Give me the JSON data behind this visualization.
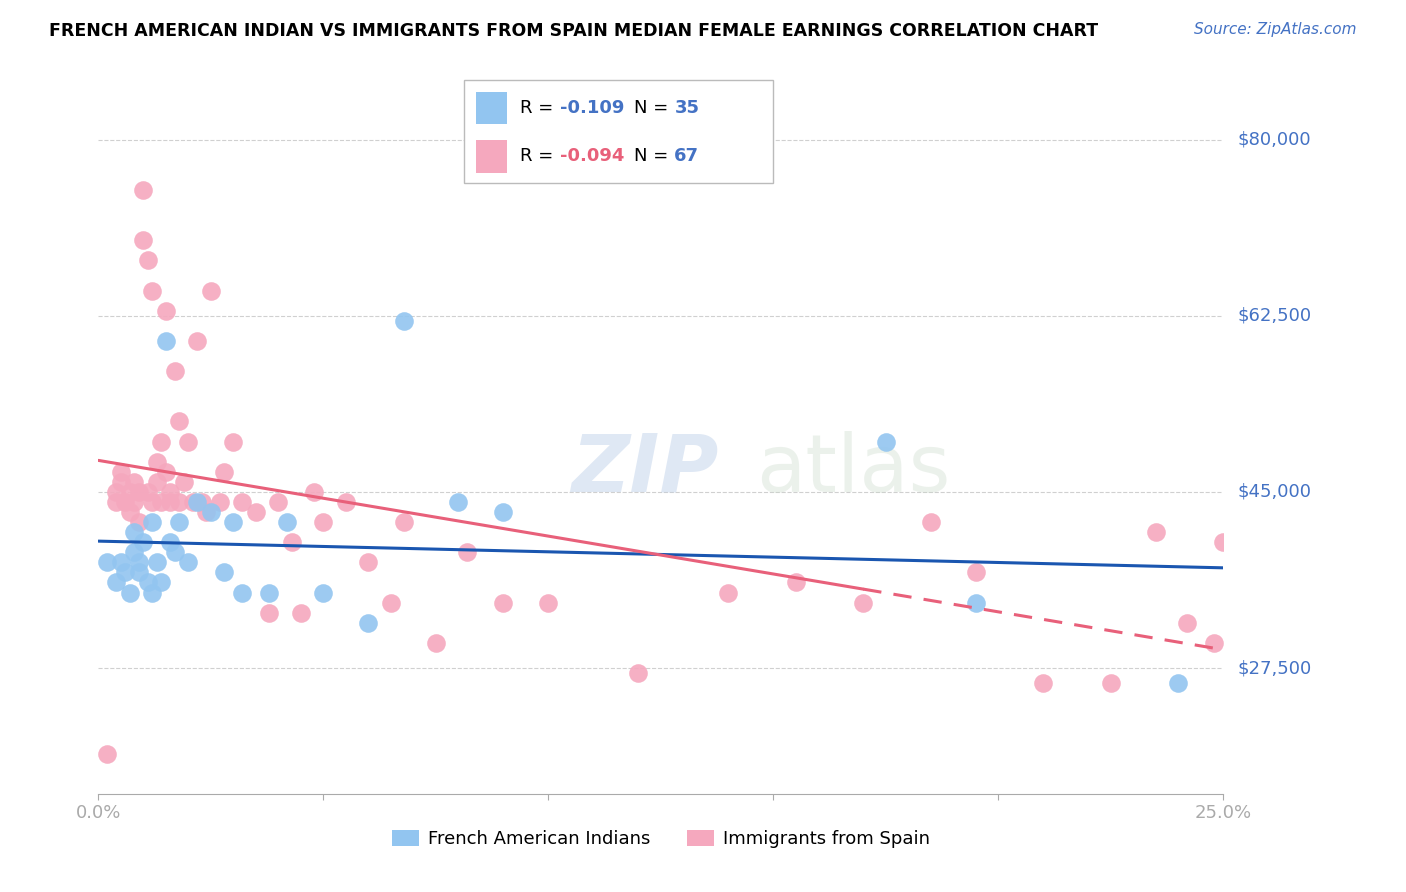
{
  "title": "FRENCH AMERICAN INDIAN VS IMMIGRANTS FROM SPAIN MEDIAN FEMALE EARNINGS CORRELATION CHART",
  "source": "Source: ZipAtlas.com",
  "ylabel": "Median Female Earnings",
  "xmin": 0.0,
  "xmax": 0.25,
  "ymin": 15000,
  "ymax": 85000,
  "blue_R": "-0.109",
  "blue_N": "35",
  "pink_R": "-0.094",
  "pink_N": "67",
  "blue_color": "#92C5F0",
  "pink_color": "#F5A8BE",
  "blue_line_color": "#1A56B0",
  "pink_line_color": "#E8607A",
  "legend_label_blue": "French American Indians",
  "legend_label_pink": "Immigrants from Spain",
  "ytick_positions": [
    27500,
    45000,
    62500,
    80000
  ],
  "ytick_labels": [
    "$27,500",
    "$45,000",
    "$62,500",
    "$80,000"
  ],
  "blue_scatter_x": [
    0.002,
    0.004,
    0.005,
    0.006,
    0.007,
    0.008,
    0.008,
    0.009,
    0.009,
    0.01,
    0.011,
    0.012,
    0.012,
    0.013,
    0.014,
    0.015,
    0.016,
    0.017,
    0.018,
    0.02,
    0.022,
    0.025,
    0.028,
    0.03,
    0.032,
    0.038,
    0.042,
    0.05,
    0.06,
    0.068,
    0.08,
    0.09,
    0.175,
    0.195,
    0.24
  ],
  "blue_scatter_y": [
    38000,
    36000,
    38000,
    37000,
    35000,
    41000,
    39000,
    38000,
    37000,
    40000,
    36000,
    42000,
    35000,
    38000,
    36000,
    60000,
    40000,
    39000,
    42000,
    38000,
    44000,
    43000,
    37000,
    42000,
    35000,
    35000,
    42000,
    35000,
    32000,
    62000,
    44000,
    43000,
    50000,
    34000,
    26000
  ],
  "pink_scatter_x": [
    0.002,
    0.004,
    0.004,
    0.005,
    0.005,
    0.006,
    0.007,
    0.007,
    0.008,
    0.008,
    0.009,
    0.009,
    0.01,
    0.01,
    0.011,
    0.011,
    0.012,
    0.012,
    0.013,
    0.013,
    0.014,
    0.014,
    0.015,
    0.015,
    0.016,
    0.016,
    0.017,
    0.018,
    0.018,
    0.019,
    0.02,
    0.021,
    0.022,
    0.023,
    0.024,
    0.025,
    0.027,
    0.028,
    0.03,
    0.032,
    0.035,
    0.038,
    0.04,
    0.043,
    0.045,
    0.048,
    0.05,
    0.055,
    0.06,
    0.065,
    0.068,
    0.075,
    0.082,
    0.09,
    0.1,
    0.12,
    0.14,
    0.155,
    0.17,
    0.185,
    0.195,
    0.21,
    0.225,
    0.235,
    0.242,
    0.248,
    0.25
  ],
  "pink_scatter_y": [
    19000,
    45000,
    44000,
    47000,
    46000,
    44000,
    45000,
    43000,
    46000,
    44000,
    45000,
    42000,
    70000,
    75000,
    45000,
    68000,
    65000,
    44000,
    48000,
    46000,
    50000,
    44000,
    47000,
    63000,
    45000,
    44000,
    57000,
    52000,
    44000,
    46000,
    50000,
    44000,
    60000,
    44000,
    43000,
    65000,
    44000,
    47000,
    50000,
    44000,
    43000,
    33000,
    44000,
    40000,
    33000,
    45000,
    42000,
    44000,
    38000,
    34000,
    42000,
    30000,
    39000,
    34000,
    34000,
    27000,
    35000,
    36000,
    34000,
    42000,
    37000,
    26000,
    26000,
    41000,
    32000,
    30000,
    40000
  ]
}
